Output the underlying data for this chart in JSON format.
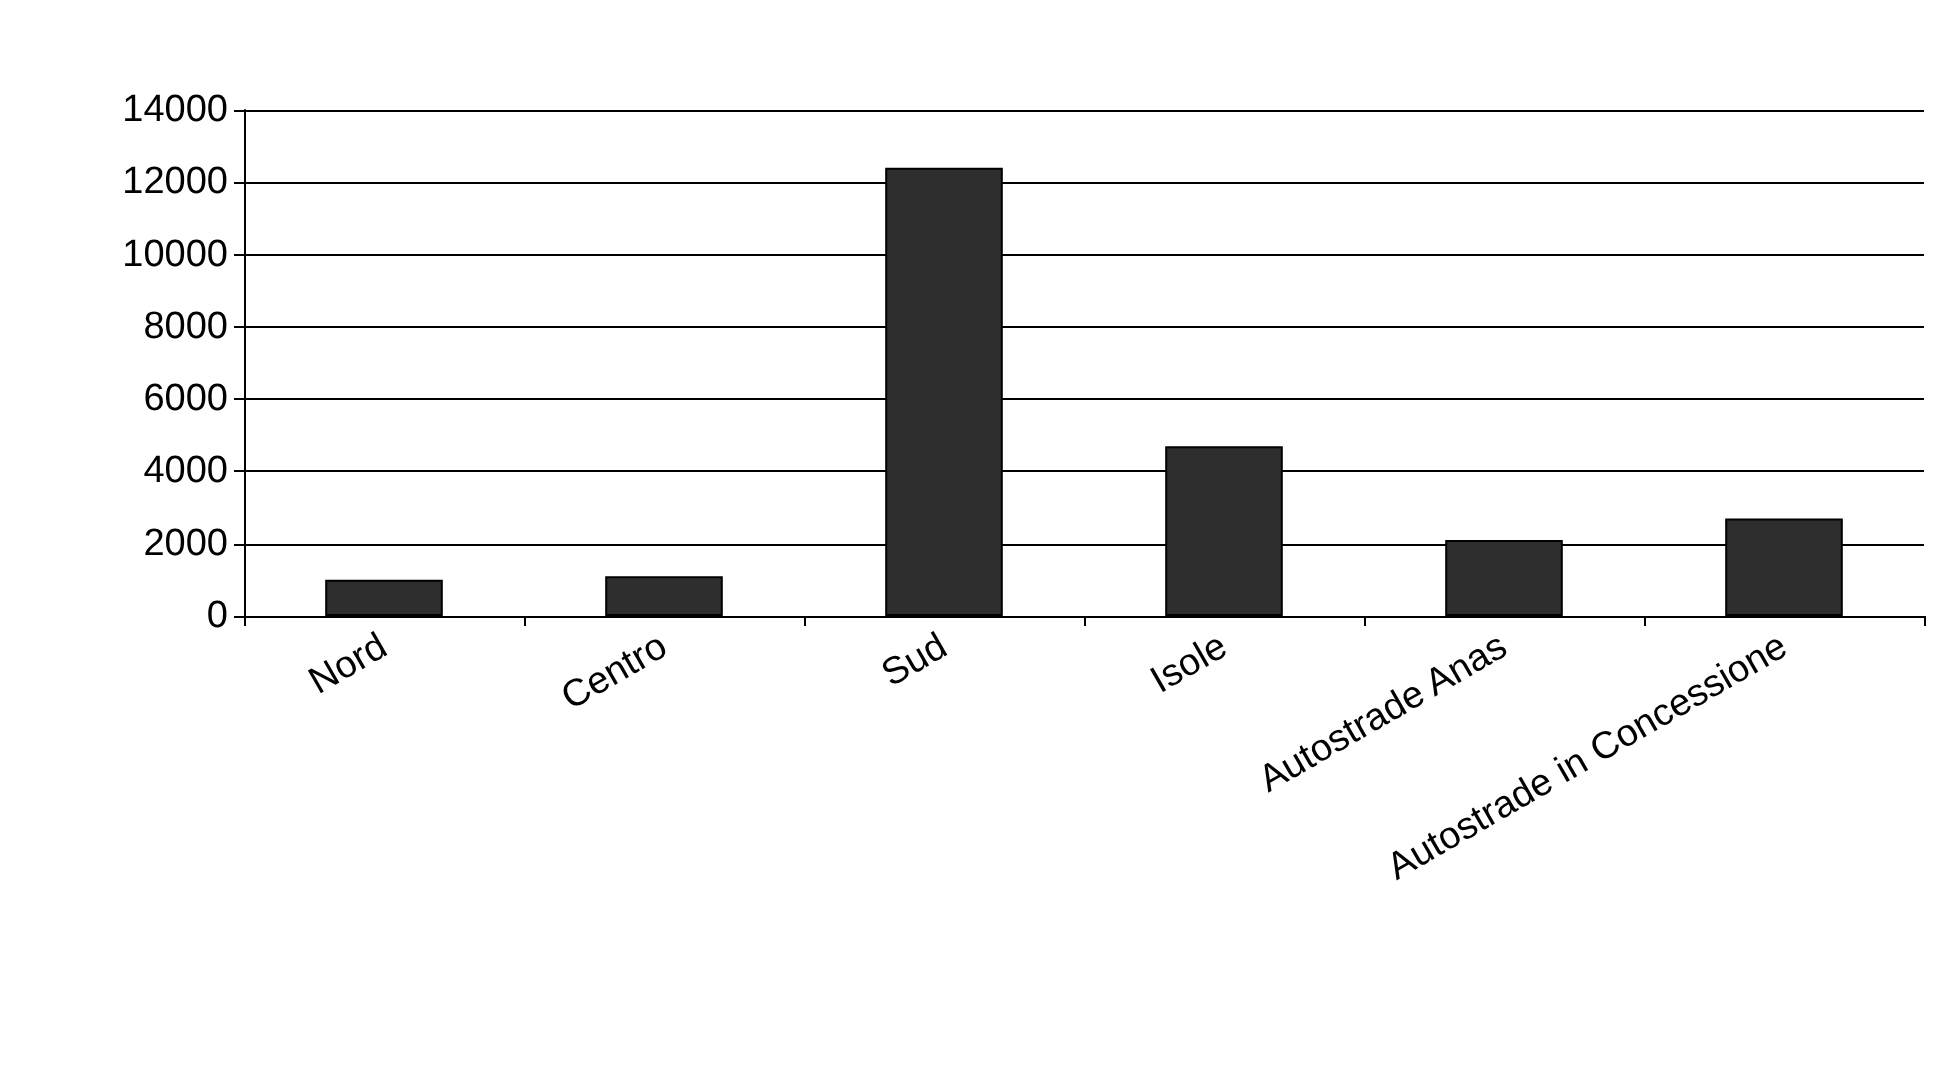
{
  "chart_data": {
    "type": "bar",
    "categories": [
      "Nord",
      "Centro",
      "Sud",
      "Isole",
      "Autostrade Anas",
      "Autostrade in Concessione"
    ],
    "values": [
      1000,
      1100,
      12400,
      4700,
      2100,
      2700
    ],
    "color": "#2e2e2e",
    "ylim": [
      0,
      14000
    ],
    "yticks": [
      0,
      2000,
      4000,
      6000,
      8000,
      10000,
      12000,
      14000
    ],
    "grid": "y"
  }
}
